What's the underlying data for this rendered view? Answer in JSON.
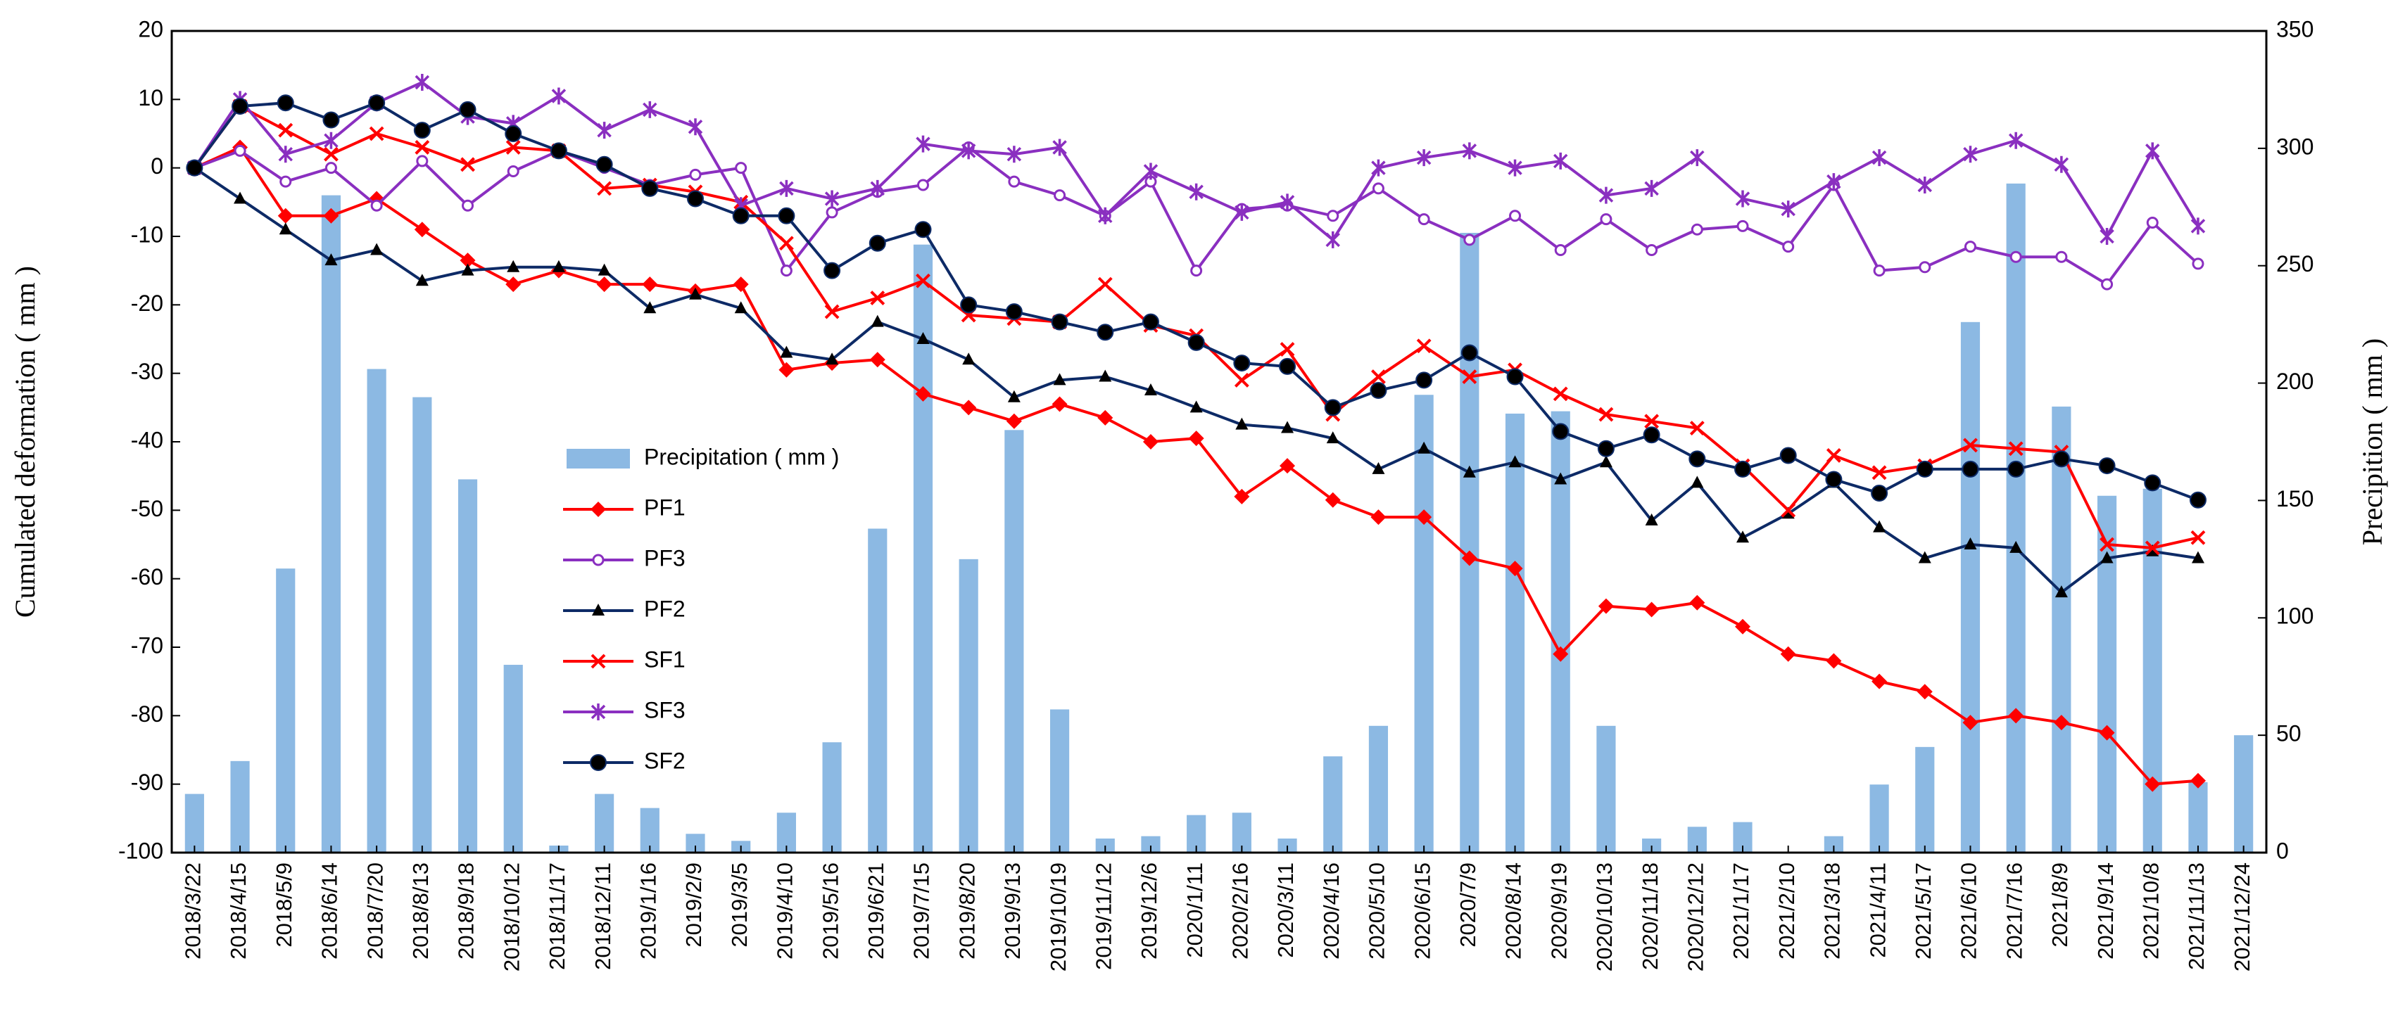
{
  "chart_data": {
    "type": "combo",
    "ylabel": "Cumulated deformation ( mm )",
    "y2label": "Precipition ( mm )",
    "ylim": [
      -100,
      20
    ],
    "yticks": [
      -100,
      -90,
      -80,
      -70,
      -60,
      -50,
      -40,
      -30,
      -20,
      -10,
      0,
      10,
      20
    ],
    "y2lim": [
      0,
      350
    ],
    "y2ticks": [
      0,
      50,
      100,
      150,
      200,
      250,
      300,
      350
    ],
    "categories": [
      "2018/3/22",
      "2018/4/15",
      "2018/5/9",
      "2018/6/14",
      "2018/7/20",
      "2018/8/13",
      "2018/9/18",
      "2018/10/12",
      "2018/11/17",
      "2018/12/11",
      "2019/1/16",
      "2019/2/9",
      "2019/3/5",
      "2019/4/10",
      "2019/5/16",
      "2019/6/21",
      "2019/7/15",
      "2019/8/20",
      "2019/9/13",
      "2019/10/19",
      "2019/11/12",
      "2019/12/6",
      "2020/1/11",
      "2020/2/16",
      "2020/3/11",
      "2020/4/16",
      "2020/5/10",
      "2020/6/15",
      "2020/7/9",
      "2020/8/14",
      "2020/9/19",
      "2020/10/13",
      "2020/11/18",
      "2020/12/12",
      "2021/1/17",
      "2021/2/10",
      "2021/3/18",
      "2021/4/11",
      "2021/5/17",
      "2021/6/10",
      "2021/7/16",
      "2021/8/9",
      "2021/9/14",
      "2021/10/8",
      "2021/11/13",
      "2021/12/24"
    ],
    "series": [
      {
        "name": "Precipitation ( mm )",
        "type": "bar",
        "axis": "y2",
        "color": "#8cb9e3",
        "values": [
          25,
          39,
          121,
          280,
          206,
          194,
          159,
          80,
          3,
          25,
          19,
          8,
          5,
          17,
          47,
          138,
          259,
          125,
          180,
          61,
          6,
          7,
          16,
          17,
          6,
          41,
          54,
          195,
          264,
          187,
          188,
          54,
          6,
          11,
          13,
          0,
          7,
          29,
          45,
          226,
          285,
          190,
          152,
          155,
          30,
          50
        ]
      },
      {
        "name": "PF1",
        "type": "line",
        "marker": "diamond",
        "color": "#ff0000",
        "values": [
          0,
          3,
          -7,
          -7,
          -4.5,
          -9,
          -13.5,
          -17,
          -15,
          -17,
          -17,
          -18,
          -17,
          -29.5,
          -28.5,
          -28,
          -33,
          -35,
          -37,
          -34.5,
          -36.5,
          -40,
          -39.5,
          -48,
          -43.5,
          -48.5,
          -51,
          -51,
          -57,
          -58.5,
          -71,
          -64,
          -64.5,
          -63.5,
          -67,
          -71,
          -72,
          -75,
          -76.5,
          -81,
          -80,
          -81,
          -82.5,
          -90,
          -89.5,
          null
        ]
      },
      {
        "name": "PF3",
        "type": "line",
        "marker": "circle",
        "color": "#8a2fc0",
        "values": [
          0,
          2.5,
          -2,
          0,
          -5.5,
          1,
          -5.5,
          -0.5,
          2.5,
          0,
          -2.5,
          -1,
          0,
          -15,
          -6.5,
          -3.5,
          -2.5,
          3,
          -2,
          -4,
          -7,
          -2,
          -15,
          -6,
          -5.5,
          -7,
          -3,
          -7.5,
          -10.5,
          -7,
          -12,
          -7.5,
          -12,
          -9,
          -8.5,
          -11.5,
          -2.5,
          -15,
          -14.5,
          -11.5,
          -13,
          -13,
          -17,
          -8,
          -14,
          null
        ]
      },
      {
        "name": "PF2",
        "type": "line",
        "marker": "triangle",
        "color": "#0d2a66",
        "values": [
          0,
          -4.5,
          -9,
          -13.5,
          -12,
          -16.5,
          -15,
          -14.5,
          -14.5,
          -15,
          -20.5,
          -18.5,
          -20.5,
          -27,
          -28,
          -22.5,
          -25,
          -28,
          -33.5,
          -31,
          -30.5,
          -32.5,
          -35,
          -37.5,
          -38,
          -39.5,
          -44,
          -41,
          -44.5,
          -43,
          -45.5,
          -43,
          -51.5,
          -46,
          -54,
          -50.5,
          -46,
          -52.5,
          -57,
          -55,
          -55.5,
          -62,
          -57,
          -56,
          -57,
          null
        ]
      },
      {
        "name": "SF1",
        "type": "line",
        "marker": "x",
        "color": "#ff0000",
        "values": [
          0,
          9,
          5.5,
          2,
          5,
          3,
          0.5,
          3,
          2.5,
          -3,
          -2.5,
          -3.5,
          -5,
          -11,
          -21,
          -19,
          -16.5,
          -21.5,
          -22,
          -22.5,
          -17,
          -23,
          -24.5,
          -31,
          -26.5,
          -36,
          -30.5,
          -26,
          -30.5,
          -29.5,
          -33,
          -36,
          -37,
          -38,
          -43.5,
          -50,
          -42,
          -44.5,
          -43.5,
          -40.5,
          -41,
          -41.5,
          -55,
          -55.5,
          -54,
          null
        ]
      },
      {
        "name": "SF3",
        "type": "line",
        "marker": "star",
        "color": "#8a2fc0",
        "values": [
          0,
          10,
          2,
          4,
          9.5,
          12.5,
          7.5,
          6.5,
          10.5,
          5.5,
          8.5,
          6,
          -5.5,
          -3,
          -4.5,
          -3,
          3.5,
          2.5,
          2,
          3,
          -7,
          -0.5,
          -3.5,
          -6.5,
          -5,
          -10.5,
          0,
          1.5,
          2.5,
          0,
          1,
          -4,
          -3,
          1.5,
          -4.5,
          -6,
          -2,
          1.5,
          -2.5,
          2,
          4,
          0.5,
          -10,
          2.5,
          -8.5,
          null
        ]
      },
      {
        "name": "SF2",
        "type": "line",
        "marker": "bigcircle",
        "color": "#0d2a66",
        "values": [
          0,
          9,
          9.5,
          7,
          9.5,
          5.5,
          8.5,
          5,
          2.5,
          0.5,
          -3,
          -4.5,
          -7,
          -7,
          -15,
          -11,
          -9,
          -20,
          -21,
          -22.5,
          -24,
          -22.5,
          -25.5,
          -28.5,
          -29,
          -35,
          -32.5,
          -31,
          -27,
          -30.5,
          -38.5,
          -41,
          -39,
          -42.5,
          -44,
          -42,
          -45.5,
          -47.5,
          -44,
          -44,
          -44,
          -42.5,
          -43.5,
          -46,
          -48.5,
          null
        ]
      }
    ]
  }
}
